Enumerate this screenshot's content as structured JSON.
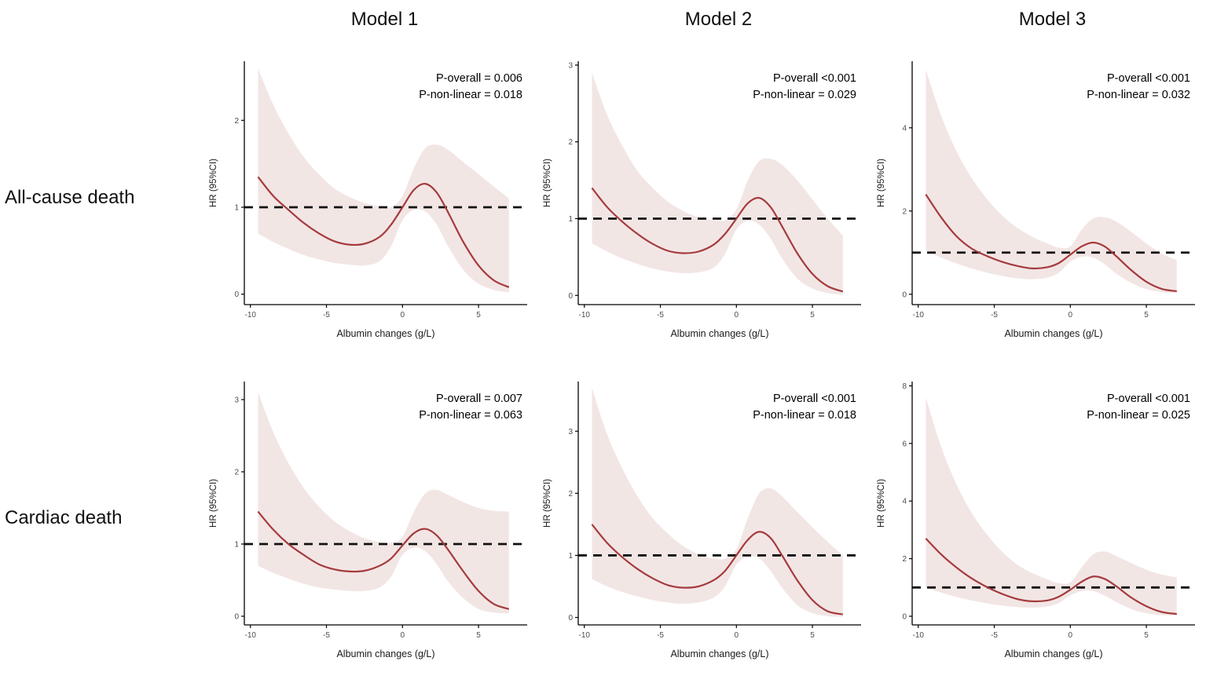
{
  "header": {
    "columns": [
      "Model 1",
      "Model 2",
      "Model 3"
    ]
  },
  "rows": [
    {
      "label": "All-cause death"
    },
    {
      "label": "Cardiac death"
    }
  ],
  "style": {
    "line_color": "#a53b3d",
    "band_color": "#f2e6e5",
    "ref_color": "#111111",
    "axis_color": "#000000",
    "tick_label_color": "#4d4d4d",
    "text_color": "#1a1a1a"
  },
  "chart_data": [
    {
      "row": "All-cause death",
      "model": "Model 1",
      "type": "line",
      "annotations": [
        "P-overall = 0.006",
        "P-non-linear = 0.018"
      ],
      "xlabel": "Albumin changes (g/L)",
      "ylabel": "HR (95%CI)",
      "xlim": [
        -10.4,
        8.2
      ],
      "ylim": [
        -0.12,
        2.68
      ],
      "x_ticks": [
        -10,
        -5,
        0,
        5
      ],
      "y_ticks": [
        0,
        1,
        2
      ],
      "ref_line_y": 1,
      "x": [
        -9.5,
        -8.5,
        -7.5,
        -6.5,
        -5.5,
        -4.5,
        -3.5,
        -2.5,
        -1.5,
        -0.75,
        0,
        0.75,
        1.5,
        2.25,
        3,
        4,
        5,
        6,
        7
      ],
      "series": [
        {
          "name": "estimate",
          "values": [
            1.35,
            1.13,
            0.97,
            0.82,
            0.7,
            0.61,
            0.57,
            0.58,
            0.66,
            0.8,
            1.0,
            1.2,
            1.27,
            1.17,
            0.94,
            0.6,
            0.33,
            0.16,
            0.08
          ]
        },
        {
          "name": "ci_lower",
          "values": [
            0.7,
            0.6,
            0.52,
            0.45,
            0.4,
            0.36,
            0.34,
            0.33,
            0.38,
            0.55,
            0.85,
            0.97,
            0.95,
            0.8,
            0.55,
            0.28,
            0.12,
            0.05,
            0.02
          ]
        },
        {
          "name": "ci_upper",
          "values": [
            2.6,
            2.18,
            1.85,
            1.58,
            1.38,
            1.22,
            1.12,
            1.05,
            1.01,
            1.0,
            1.13,
            1.45,
            1.68,
            1.72,
            1.66,
            1.52,
            1.38,
            1.24,
            1.1
          ]
        }
      ]
    },
    {
      "row": "All-cause death",
      "model": "Model 2",
      "type": "line",
      "annotations": [
        "P-overall  <0.001",
        "P-non-linear = 0.029"
      ],
      "xlabel": "Albumin changes (g/L)",
      "ylabel": "HR (95%CI)",
      "xlim": [
        -10.4,
        8.2
      ],
      "ylim": [
        -0.12,
        3.05
      ],
      "x_ticks": [
        -10,
        -5,
        0,
        5
      ],
      "y_ticks": [
        0,
        1,
        2,
        3
      ],
      "ref_line_y": 1,
      "x": [
        -9.5,
        -8.5,
        -7.5,
        -6.5,
        -5.5,
        -4.5,
        -3.5,
        -2.5,
        -1.5,
        -0.75,
        0,
        0.75,
        1.5,
        2.25,
        3,
        4,
        5,
        6,
        7
      ],
      "series": [
        {
          "name": "estimate",
          "values": [
            1.4,
            1.15,
            0.96,
            0.8,
            0.67,
            0.58,
            0.55,
            0.57,
            0.66,
            0.8,
            1.0,
            1.2,
            1.27,
            1.15,
            0.9,
            0.55,
            0.28,
            0.12,
            0.05
          ]
        },
        {
          "name": "ci_lower",
          "values": [
            0.68,
            0.57,
            0.48,
            0.41,
            0.35,
            0.31,
            0.29,
            0.3,
            0.36,
            0.54,
            0.86,
            0.97,
            0.92,
            0.74,
            0.48,
            0.22,
            0.09,
            0.03,
            0.01
          ]
        },
        {
          "name": "ci_upper",
          "values": [
            2.9,
            2.35,
            1.95,
            1.62,
            1.4,
            1.22,
            1.1,
            1.02,
            0.98,
            0.98,
            1.12,
            1.5,
            1.75,
            1.78,
            1.7,
            1.5,
            1.25,
            1.0,
            0.78
          ]
        }
      ]
    },
    {
      "row": "All-cause death",
      "model": "Model 3",
      "type": "line",
      "annotations": [
        "P-overall  <0.001",
        "P-non-linear = 0.032"
      ],
      "xlabel": "Albumin changes (g/L)",
      "ylabel": "HR (95%CI)",
      "xlim": [
        -10.4,
        8.2
      ],
      "ylim": [
        -0.25,
        5.6
      ],
      "x_ticks": [
        -10,
        -5,
        0,
        5
      ],
      "y_ticks": [
        0,
        2,
        4
      ],
      "ref_line_y": 1,
      "x": [
        -9.5,
        -8.5,
        -7.5,
        -6.5,
        -5.5,
        -4.5,
        -3.5,
        -2.5,
        -1.5,
        -0.75,
        0,
        0.75,
        1.5,
        2.25,
        3,
        4,
        5,
        6,
        7
      ],
      "series": [
        {
          "name": "estimate",
          "values": [
            2.4,
            1.85,
            1.4,
            1.1,
            0.92,
            0.78,
            0.68,
            0.62,
            0.65,
            0.75,
            0.95,
            1.15,
            1.24,
            1.15,
            0.92,
            0.58,
            0.3,
            0.13,
            0.07
          ]
        },
        {
          "name": "ci_lower",
          "values": [
            1.05,
            0.88,
            0.74,
            0.62,
            0.52,
            0.44,
            0.38,
            0.36,
            0.4,
            0.52,
            0.78,
            0.9,
            0.88,
            0.72,
            0.5,
            0.27,
            0.12,
            0.05,
            0.03
          ]
        },
        {
          "name": "ci_upper",
          "values": [
            5.4,
            4.3,
            3.45,
            2.8,
            2.3,
            1.9,
            1.6,
            1.38,
            1.22,
            1.12,
            1.15,
            1.55,
            1.82,
            1.85,
            1.75,
            1.5,
            1.22,
            0.98,
            0.82
          ]
        }
      ]
    },
    {
      "row": "Cardiac death",
      "model": "Model 1",
      "type": "line",
      "annotations": [
        "P-overall = 0.007",
        "P-non-linear = 0.063"
      ],
      "xlabel": "Albumin changes (g/L)",
      "ylabel": "HR (95%CI)",
      "xlim": [
        -10.4,
        8.2
      ],
      "ylim": [
        -0.12,
        3.25
      ],
      "x_ticks": [
        -10,
        -5,
        0,
        5
      ],
      "y_ticks": [
        0,
        1,
        2,
        3
      ],
      "ref_line_y": 1,
      "x": [
        -9.5,
        -8.5,
        -7.5,
        -6.5,
        -5.5,
        -4.5,
        -3.5,
        -2.5,
        -1.5,
        -0.75,
        0,
        0.75,
        1.5,
        2.25,
        3,
        4,
        5,
        6,
        7
      ],
      "series": [
        {
          "name": "estimate",
          "values": [
            1.45,
            1.2,
            1.0,
            0.85,
            0.72,
            0.65,
            0.62,
            0.63,
            0.7,
            0.8,
            0.98,
            1.15,
            1.21,
            1.12,
            0.92,
            0.62,
            0.35,
            0.17,
            0.1
          ]
        },
        {
          "name": "ci_lower",
          "values": [
            0.7,
            0.6,
            0.52,
            0.45,
            0.4,
            0.37,
            0.35,
            0.35,
            0.4,
            0.55,
            0.85,
            0.95,
            0.9,
            0.72,
            0.48,
            0.25,
            0.1,
            0.05,
            0.04
          ]
        },
        {
          "name": "ci_upper",
          "values": [
            3.1,
            2.55,
            2.12,
            1.78,
            1.52,
            1.32,
            1.18,
            1.08,
            1.03,
            1.02,
            1.1,
            1.45,
            1.7,
            1.75,
            1.68,
            1.58,
            1.5,
            1.46,
            1.45
          ]
        }
      ]
    },
    {
      "row": "Cardiac death",
      "model": "Model 2",
      "type": "line",
      "annotations": [
        "P-overall  <0.001",
        "P-non-linear = 0.018"
      ],
      "xlabel": "Albumin changes (g/L)",
      "ylabel": "HR (95%CI)",
      "xlim": [
        -10.4,
        8.2
      ],
      "ylim": [
        -0.12,
        3.8
      ],
      "x_ticks": [
        -10,
        -5,
        0,
        5
      ],
      "y_ticks": [
        0,
        1,
        2,
        3
      ],
      "ref_line_y": 1,
      "x": [
        -9.5,
        -8.5,
        -7.5,
        -6.5,
        -5.5,
        -4.5,
        -3.5,
        -2.5,
        -1.5,
        -0.75,
        0,
        0.75,
        1.5,
        2.25,
        3,
        4,
        5,
        6,
        7
      ],
      "series": [
        {
          "name": "estimate",
          "values": [
            1.5,
            1.2,
            0.97,
            0.78,
            0.63,
            0.52,
            0.48,
            0.5,
            0.6,
            0.75,
            1.0,
            1.25,
            1.38,
            1.28,
            1.0,
            0.6,
            0.28,
            0.1,
            0.05
          ]
        },
        {
          "name": "ci_lower",
          "values": [
            0.62,
            0.5,
            0.41,
            0.34,
            0.28,
            0.24,
            0.22,
            0.24,
            0.32,
            0.5,
            0.85,
            0.98,
            0.95,
            0.75,
            0.48,
            0.2,
            0.07,
            0.02,
            0.01
          ]
        },
        {
          "name": "ci_upper",
          "values": [
            3.7,
            2.95,
            2.4,
            1.95,
            1.6,
            1.35,
            1.15,
            1.02,
            0.95,
            0.95,
            1.1,
            1.6,
            2.0,
            2.08,
            1.95,
            1.7,
            1.45,
            1.22,
            1.0
          ]
        }
      ]
    },
    {
      "row": "Cardiac death",
      "model": "Model 3",
      "type": "line",
      "annotations": [
        "P-overall  <0.001",
        "P-non-linear = 0.025"
      ],
      "xlabel": "Albumin changes (g/L)",
      "ylabel": "HR (95%CI)",
      "xlim": [
        -10.4,
        8.2
      ],
      "ylim": [
        -0.3,
        8.15
      ],
      "x_ticks": [
        -10,
        -5,
        0,
        5
      ],
      "y_ticks": [
        0,
        2,
        4,
        6,
        8
      ],
      "ref_line_y": 1,
      "x": [
        -9.5,
        -8.5,
        -7.5,
        -6.5,
        -5.5,
        -4.5,
        -3.5,
        -2.5,
        -1.5,
        -0.75,
        0,
        0.75,
        1.5,
        2.25,
        3,
        4,
        5,
        6,
        7
      ],
      "series": [
        {
          "name": "estimate",
          "values": [
            2.7,
            2.15,
            1.7,
            1.32,
            1.02,
            0.78,
            0.6,
            0.52,
            0.55,
            0.68,
            0.92,
            1.2,
            1.38,
            1.3,
            1.05,
            0.65,
            0.35,
            0.15,
            0.08
          ]
        },
        {
          "name": "ci_lower",
          "values": [
            1.0,
            0.82,
            0.67,
            0.55,
            0.45,
            0.37,
            0.32,
            0.3,
            0.34,
            0.46,
            0.72,
            0.88,
            0.88,
            0.72,
            0.5,
            0.25,
            0.1,
            0.04,
            0.02
          ]
        },
        {
          "name": "ci_upper",
          "values": [
            7.6,
            5.9,
            4.6,
            3.6,
            2.85,
            2.25,
            1.8,
            1.5,
            1.28,
            1.15,
            1.18,
            1.7,
            2.15,
            2.25,
            2.1,
            1.85,
            1.62,
            1.45,
            1.35
          ]
        }
      ]
    }
  ]
}
